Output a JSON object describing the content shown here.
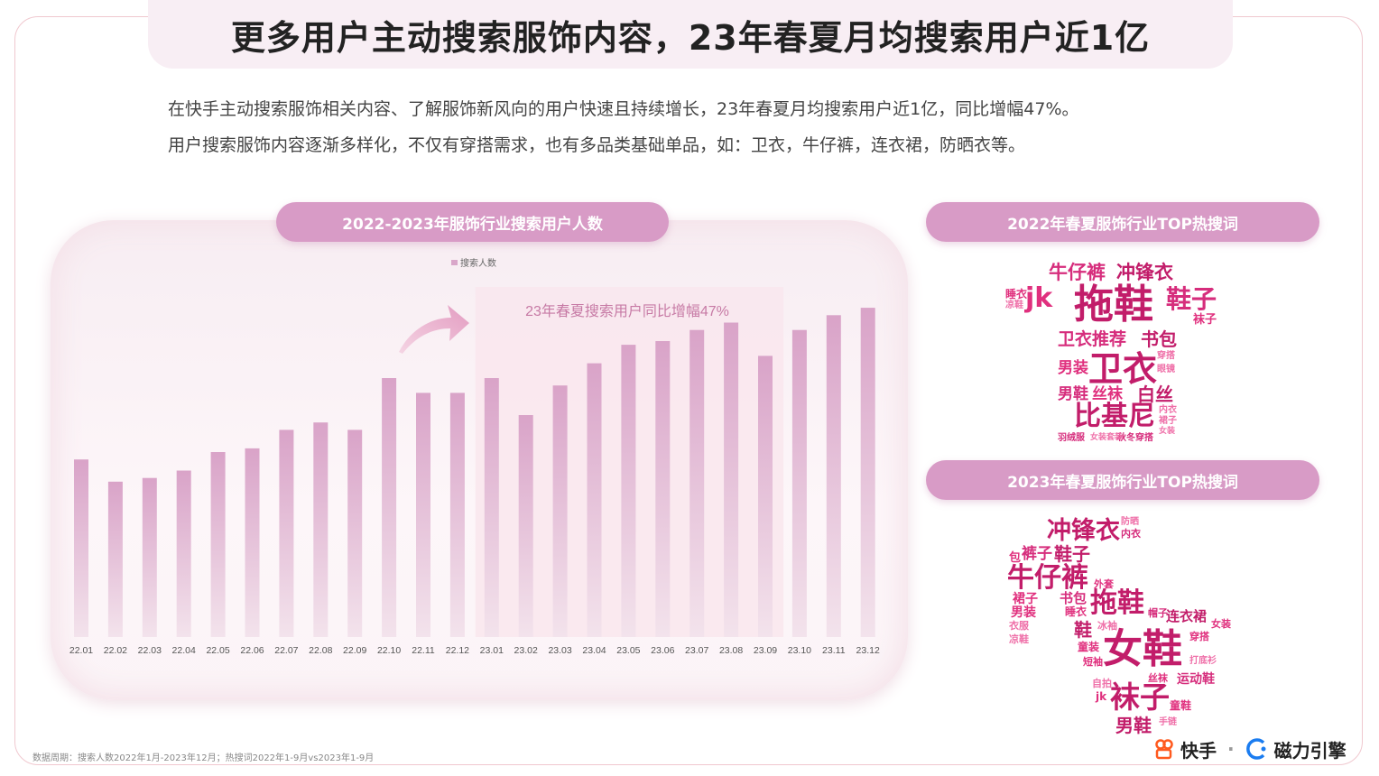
{
  "title": "更多用户主动搜索服饰内容，23年春夏月均搜索用户近1亿",
  "description": [
    "在快手主动搜索服饰相关内容、了解服饰新风向的用户快速且持续增长，23年春夏月均搜索用户近1亿，同比增幅47%。",
    "用户搜索服饰内容逐渐多样化，不仅有穿搭需求，也有多品类基础单品，如：卫衣，牛仔裤，连衣裙，防晒衣等。"
  ],
  "chart_title": "2022-2023年服饰行业搜索用户人数",
  "chart_data": {
    "type": "bar",
    "categories": [
      "22.01",
      "22.02",
      "22.03",
      "22.04",
      "22.05",
      "22.06",
      "22.07",
      "22.08",
      "22.09",
      "22.10",
      "22.11",
      "22.12",
      "23.01",
      "23.02",
      "23.03",
      "23.04",
      "23.05",
      "23.06",
      "23.07",
      "23.08",
      "23.09",
      "23.10",
      "23.11",
      "23.12"
    ],
    "series": [
      {
        "name": "搜索人数",
        "values": [
          48,
          42,
          43,
          45,
          50,
          51,
          56,
          58,
          56,
          70,
          66,
          66,
          70,
          60,
          68,
          74,
          79,
          80,
          83,
          85,
          76,
          83,
          87,
          89
        ]
      }
    ],
    "ylim": [
      0,
      100
    ],
    "legend_position": "top-center",
    "grid": false,
    "bar_color": "#d9a6c9",
    "annotation": "23年春夏搜索用户同比增幅47%",
    "highlight_range": [
      "23.01",
      "23.08"
    ]
  },
  "cloud_2022": {
    "title": "2022年春夏服饰行业TOP热搜词",
    "words": [
      "牛仔裤",
      "冲锋衣",
      "jk",
      "拖鞋",
      "鞋子",
      "卫衣推荐",
      "书包",
      "男装",
      "卫衣",
      "男鞋",
      "丝袜",
      "白丝",
      "比基尼",
      "秋冬穿搭",
      "袜子",
      "穿搭",
      "眼镜",
      "睡衣",
      "内衣",
      "裙子",
      "凉鞋",
      "女装",
      "羽绒服",
      "女装套装"
    ]
  },
  "cloud_2023": {
    "title": "2023年春夏服饰行业TOP热搜词",
    "words": [
      "冲锋衣",
      "内衣",
      "防晒",
      "包",
      "裤子",
      "鞋子",
      "牛仔裤",
      "外套",
      "裙子",
      "书包",
      "拖鞋",
      "男装",
      "睡衣",
      "帽子",
      "连衣裙",
      "女装",
      "衣服",
      "鞋",
      "冰袖",
      "凉鞋",
      "女鞋",
      "穿搭",
      "童装",
      "打底衫",
      "短袖",
      "自拍",
      "运动鞋",
      "丝袜",
      "袜子",
      "童鞋",
      "男鞋",
      "手链",
      "jk"
    ]
  },
  "footnote": "数据周期：搜索人数2022年1月-2023年12月；热搜词2022年1-9月vs2023年1-9月",
  "logos": {
    "kuaishou": "快手",
    "separator": "·",
    "cili": "磁力引擎"
  },
  "colors": {
    "accent": "#d89bc6",
    "word_pink": "#e0307e",
    "word_dark": "#c21d6a",
    "word_light": "#ef6fa8"
  }
}
